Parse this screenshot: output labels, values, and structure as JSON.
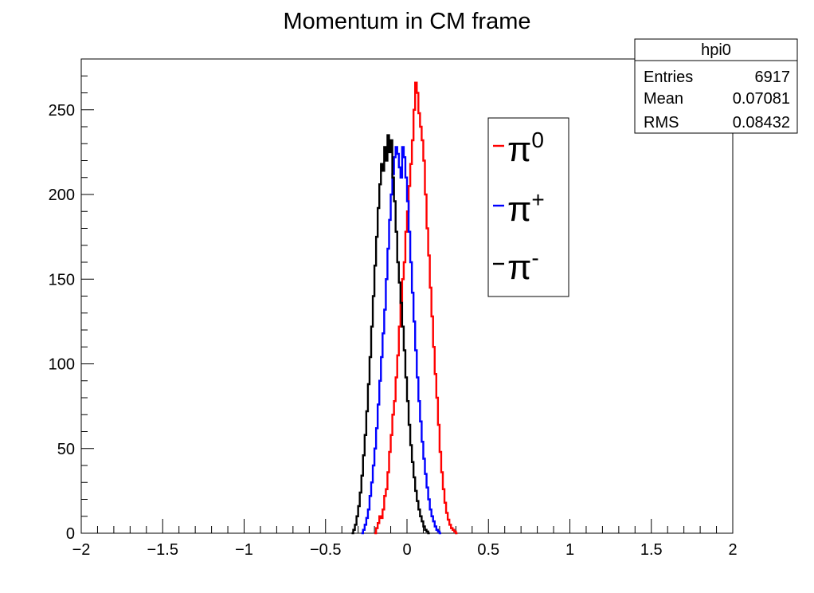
{
  "chart_data": {
    "type": "histogram-step",
    "title": "Momentum in CM frame",
    "xlabel": "",
    "ylabel": "",
    "xlim": [
      -2,
      2
    ],
    "ylim": [
      0,
      280
    ],
    "x_ticks": [
      -2,
      -1.5,
      -1,
      -0.5,
      0,
      0.5,
      1,
      1.5,
      2
    ],
    "x_tick_labels": [
      "−2",
      "−1.5",
      "−1",
      "−0.5",
      "0",
      "0.5",
      "1",
      "1.5",
      "2"
    ],
    "y_ticks": [
      0,
      50,
      100,
      150,
      200,
      250
    ],
    "y_tick_labels": [
      "0",
      "50",
      "100",
      "150",
      "200",
      "250"
    ],
    "grid": false,
    "stats_box": {
      "name": "hpi0",
      "rows": [
        {
          "label": "Entries",
          "value": "6917"
        },
        {
          "label": "Mean",
          "value": "0.07081"
        },
        {
          "label": "RMS",
          "value": "0.08432"
        }
      ]
    },
    "legend": {
      "placement": "top-right",
      "entries": [
        {
          "base": "π",
          "sup": "0",
          "color": "#ff0000"
        },
        {
          "base": "π",
          "sup": "+",
          "color": "#0000ff"
        },
        {
          "base": "π",
          "sup": "-",
          "color": "#000000"
        }
      ]
    },
    "series": [
      {
        "color": "#ff0000",
        "points": [
          [
            -0.2,
            0
          ],
          [
            -0.19,
            3
          ],
          [
            -0.18,
            6
          ],
          [
            -0.17,
            10
          ],
          [
            -0.16,
            9
          ],
          [
            -0.15,
            14
          ],
          [
            -0.14,
            22
          ],
          [
            -0.13,
            26
          ],
          [
            -0.12,
            36
          ],
          [
            -0.11,
            48
          ],
          [
            -0.1,
            58
          ],
          [
            -0.09,
            70
          ],
          [
            -0.08,
            78
          ],
          [
            -0.07,
            92
          ],
          [
            -0.06,
            105
          ],
          [
            -0.05,
            122
          ],
          [
            -0.04,
            137
          ],
          [
            -0.03,
            150
          ],
          [
            -0.02,
            160
          ],
          [
            -0.01,
            178
          ],
          [
            0,
            190
          ],
          [
            0.01,
            205
          ],
          [
            0.02,
            218
          ],
          [
            0.03,
            232
          ],
          [
            0.04,
            250
          ],
          [
            0.05,
            266
          ],
          [
            0.06,
            260
          ],
          [
            0.07,
            248
          ],
          [
            0.08,
            240
          ],
          [
            0.09,
            232
          ],
          [
            0.1,
            220
          ],
          [
            0.11,
            200
          ],
          [
            0.12,
            180
          ],
          [
            0.13,
            164
          ],
          [
            0.14,
            145
          ],
          [
            0.15,
            128
          ],
          [
            0.16,
            110
          ],
          [
            0.17,
            94
          ],
          [
            0.18,
            80
          ],
          [
            0.19,
            64
          ],
          [
            0.2,
            48
          ],
          [
            0.21,
            36
          ],
          [
            0.22,
            26
          ],
          [
            0.23,
            18
          ],
          [
            0.24,
            12
          ],
          [
            0.25,
            8
          ],
          [
            0.26,
            5
          ],
          [
            0.27,
            3
          ],
          [
            0.28,
            2
          ],
          [
            0.29,
            1
          ],
          [
            0.3,
            0
          ]
        ]
      },
      {
        "color": "#0000ff",
        "points": [
          [
            -0.28,
            0
          ],
          [
            -0.27,
            2
          ],
          [
            -0.26,
            5
          ],
          [
            -0.25,
            9
          ],
          [
            -0.24,
            14
          ],
          [
            -0.23,
            22
          ],
          [
            -0.22,
            30
          ],
          [
            -0.21,
            40
          ],
          [
            -0.2,
            50
          ],
          [
            -0.19,
            62
          ],
          [
            -0.18,
            76
          ],
          [
            -0.17,
            90
          ],
          [
            -0.16,
            104
          ],
          [
            -0.15,
            118
          ],
          [
            -0.14,
            132
          ],
          [
            -0.13,
            150
          ],
          [
            -0.12,
            168
          ],
          [
            -0.11,
            185
          ],
          [
            -0.1,
            200
          ],
          [
            -0.09,
            212
          ],
          [
            -0.08,
            222
          ],
          [
            -0.07,
            228
          ],
          [
            -0.06,
            224
          ],
          [
            -0.05,
            216
          ],
          [
            -0.04,
            210
          ],
          [
            -0.03,
            228
          ],
          [
            -0.02,
            222
          ],
          [
            -0.01,
            210
          ],
          [
            0,
            196
          ],
          [
            0.01,
            178
          ],
          [
            0.02,
            160
          ],
          [
            0.03,
            142
          ],
          [
            0.04,
            125
          ],
          [
            0.05,
            108
          ],
          [
            0.06,
            92
          ],
          [
            0.07,
            78
          ],
          [
            0.08,
            66
          ],
          [
            0.09,
            54
          ],
          [
            0.1,
            44
          ],
          [
            0.11,
            35
          ],
          [
            0.12,
            27
          ],
          [
            0.13,
            20
          ],
          [
            0.14,
            14
          ],
          [
            0.15,
            10
          ],
          [
            0.16,
            7
          ],
          [
            0.17,
            4
          ],
          [
            0.18,
            2
          ],
          [
            0.19,
            1
          ],
          [
            0.2,
            0
          ]
        ]
      },
      {
        "color": "#000000",
        "points": [
          [
            -0.34,
            0
          ],
          [
            -0.33,
            2
          ],
          [
            -0.32,
            5
          ],
          [
            -0.31,
            10
          ],
          [
            -0.3,
            16
          ],
          [
            -0.29,
            24
          ],
          [
            -0.28,
            34
          ],
          [
            -0.27,
            46
          ],
          [
            -0.26,
            58
          ],
          [
            -0.25,
            72
          ],
          [
            -0.24,
            88
          ],
          [
            -0.23,
            104
          ],
          [
            -0.22,
            122
          ],
          [
            -0.21,
            140
          ],
          [
            -0.2,
            158
          ],
          [
            -0.19,
            175
          ],
          [
            -0.18,
            192
          ],
          [
            -0.17,
            206
          ],
          [
            -0.16,
            218
          ],
          [
            -0.15,
            214
          ],
          [
            -0.14,
            228
          ],
          [
            -0.13,
            220
          ],
          [
            -0.12,
            235
          ],
          [
            -0.11,
            225
          ],
          [
            -0.1,
            232
          ],
          [
            -0.09,
            210
          ],
          [
            -0.08,
            196
          ],
          [
            -0.07,
            178
          ],
          [
            -0.06,
            160
          ],
          [
            -0.05,
            148
          ],
          [
            -0.04,
            136
          ],
          [
            -0.03,
            122
          ],
          [
            -0.02,
            108
          ],
          [
            -0.01,
            92
          ],
          [
            0,
            78
          ],
          [
            0.01,
            64
          ],
          [
            0.02,
            52
          ],
          [
            0.03,
            42
          ],
          [
            0.04,
            33
          ],
          [
            0.05,
            25
          ],
          [
            0.06,
            19
          ],
          [
            0.07,
            14
          ],
          [
            0.08,
            10
          ],
          [
            0.09,
            7
          ],
          [
            0.1,
            4
          ],
          [
            0.11,
            2
          ],
          [
            0.12,
            1
          ],
          [
            0.13,
            0
          ]
        ]
      }
    ]
  }
}
